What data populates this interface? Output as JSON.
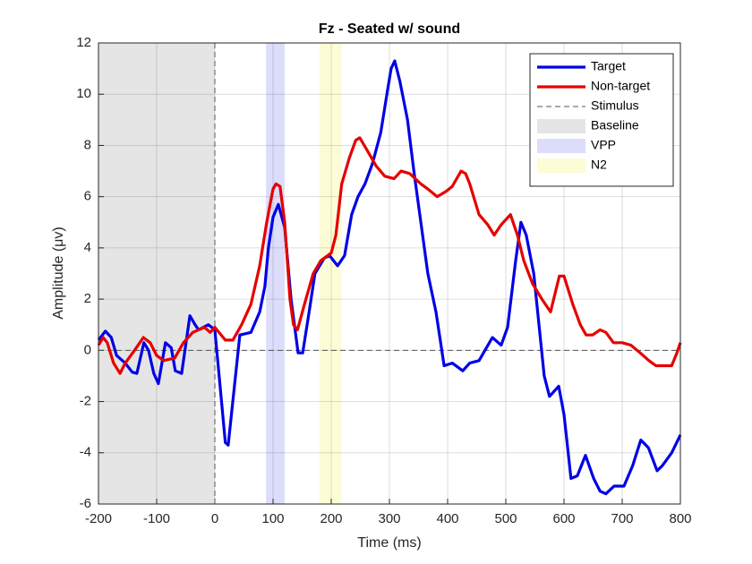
{
  "chart_data": {
    "type": "line",
    "title": "Fz - Seated w/ sound",
    "xlabel": "Time (ms)",
    "ylabel": "Amplitude (μv)",
    "xlim": [
      -200,
      800
    ],
    "ylim": [
      -6,
      12
    ],
    "xticks": [
      -200,
      -100,
      0,
      100,
      200,
      300,
      400,
      500,
      600,
      700,
      800
    ],
    "yticks": [
      -6,
      -4,
      -2,
      0,
      2,
      4,
      6,
      8,
      10,
      12
    ],
    "grid": true,
    "legend": "northeast",
    "regions": [
      {
        "name": "Baseline",
        "range": [
          -200,
          0
        ],
        "color": "#e5e5e5"
      },
      {
        "name": "VPP",
        "range": [
          88,
          120
        ],
        "color": "#dcdcfb"
      },
      {
        "name": "N2",
        "range": [
          180,
          218
        ],
        "color": "#fcfcd6"
      }
    ],
    "vlines": [
      {
        "name": "Stimulus",
        "x": 0,
        "color": "#555555"
      }
    ],
    "hlines": [
      0
    ],
    "series": [
      {
        "name": "Target",
        "color": "#0000e6",
        "x": [
          -200,
          -188,
          -178,
          -169,
          -154,
          -142,
          -134,
          -122,
          -114,
          -105,
          -97,
          -85,
          -75,
          -68,
          -57,
          -43,
          -34,
          -28,
          -11,
          0,
          18,
          23,
          43,
          62,
          77,
          86,
          92,
          100,
          109,
          120,
          131,
          143,
          151,
          162,
          172,
          188,
          197,
          211,
          223,
          235,
          246,
          258,
          271,
          285,
          297,
          303,
          309,
          318,
          331,
          342,
          354,
          366,
          380,
          394,
          408,
          426,
          438,
          454,
          477,
          492,
          503,
          517,
          526,
          535,
          548,
          566,
          575,
          591,
          600,
          612,
          623,
          637,
          651,
          662,
          672,
          686,
          703,
          718,
          732,
          745,
          760,
          769,
          785,
          800
        ],
        "values": [
          0.4,
          0.75,
          0.5,
          -0.2,
          -0.5,
          -0.85,
          -0.9,
          0.3,
          0,
          -0.9,
          -1.3,
          0.3,
          0.1,
          -0.8,
          -0.9,
          1.35,
          1.0,
          0.8,
          1.0,
          0.8,
          -3.6,
          -3.7,
          0.6,
          0.7,
          1.5,
          2.5,
          4.0,
          5.2,
          5.7,
          4.8,
          2.0,
          -0.1,
          -0.1,
          1.5,
          3.0,
          3.6,
          3.7,
          3.3,
          3.7,
          5.3,
          6.0,
          6.5,
          7.3,
          8.5,
          10.2,
          11.0,
          11.3,
          10.5,
          9.0,
          7.0,
          5.0,
          3.0,
          1.5,
          -0.6,
          -0.5,
          -0.8,
          -0.5,
          -0.4,
          0.5,
          0.2,
          0.9,
          3.5,
          5.0,
          4.5,
          3.0,
          -1.0,
          -1.8,
          -1.4,
          -2.5,
          -5.0,
          -4.9,
          -4.1,
          -5.0,
          -5.5,
          -5.6,
          -5.3,
          -5.3,
          -4.5,
          -3.5,
          -3.8,
          -4.7,
          -4.5,
          -4.0,
          -3.3
        ]
      },
      {
        "name": "Non-target",
        "color": "#e60000",
        "x": [
          -200,
          -192,
          -185,
          -174,
          -163,
          -154,
          -138,
          -123,
          -111,
          -100,
          -88,
          -69,
          -54,
          -38,
          -18,
          -8,
          0,
          18,
          31,
          46,
          62,
          77,
          89,
          100,
          105,
          112,
          120,
          129,
          135,
          142,
          154,
          169,
          182,
          200,
          208,
          218,
          231,
          242,
          249,
          262,
          277,
          292,
          308,
          320,
          335,
          354,
          366,
          382,
          397,
          408,
          423,
          431,
          438,
          454,
          469,
          480,
          492,
          508,
          520,
          531,
          546,
          562,
          577,
          592,
          600,
          615,
          628,
          638,
          649,
          662,
          672,
          685,
          700,
          715,
          731,
          746,
          758,
          772,
          785,
          794,
          800
        ],
        "values": [
          0.2,
          0.5,
          0.3,
          -0.5,
          -0.9,
          -0.5,
          0,
          0.5,
          0.3,
          -0.2,
          -0.4,
          -0.3,
          0.3,
          0.7,
          0.9,
          0.7,
          0.9,
          0.4,
          0.4,
          1.0,
          1.8,
          3.3,
          5.0,
          6.3,
          6.5,
          6.4,
          5.0,
          2.0,
          1.0,
          0.8,
          1.8,
          3.0,
          3.5,
          3.8,
          4.5,
          6.5,
          7.5,
          8.2,
          8.3,
          7.8,
          7.2,
          6.8,
          6.7,
          7.0,
          6.9,
          6.5,
          6.3,
          6.0,
          6.2,
          6.4,
          7.0,
          6.9,
          6.5,
          5.3,
          4.9,
          4.5,
          4.9,
          5.3,
          4.5,
          3.5,
          2.6,
          2.0,
          1.5,
          2.9,
          2.9,
          1.8,
          1.0,
          0.6,
          0.6,
          0.8,
          0.7,
          0.3,
          0.3,
          0.2,
          -0.1,
          -0.4,
          -0.6,
          -0.6,
          -0.6,
          -0.1,
          0.3
        ]
      }
    ]
  }
}
